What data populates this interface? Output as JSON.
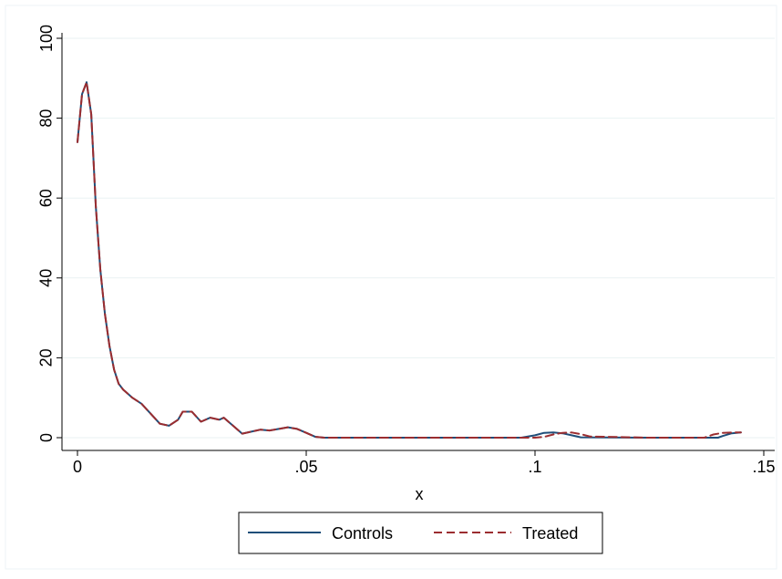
{
  "chart_data": {
    "type": "line",
    "title": "",
    "xlabel": "x",
    "ylabel": "",
    "xlim": [
      0,
      0.15
    ],
    "ylim": [
      0,
      100
    ],
    "xticks": [
      0,
      0.05,
      0.1,
      0.15
    ],
    "xtick_labels": [
      "0",
      ".05",
      ".1",
      ".15"
    ],
    "yticks": [
      0,
      20,
      40,
      60,
      80,
      100
    ],
    "ytick_labels": [
      "0",
      "20",
      "40",
      "60",
      "80",
      "100"
    ],
    "grid": true,
    "legend_position": "bottom",
    "series": [
      {
        "name": "Controls",
        "color": "#1f4e79",
        "dash": "solid",
        "x": [
          0,
          0.001,
          0.002,
          0.003,
          0.004,
          0.005,
          0.006,
          0.007,
          0.008,
          0.009,
          0.01,
          0.011,
          0.012,
          0.014,
          0.016,
          0.018,
          0.02,
          0.022,
          0.023,
          0.025,
          0.027,
          0.029,
          0.031,
          0.032,
          0.034,
          0.036,
          0.038,
          0.04,
          0.042,
          0.044,
          0.046,
          0.048,
          0.05,
          0.052,
          0.054,
          0.056,
          0.058,
          0.06,
          0.062,
          0.08,
          0.097,
          0.1,
          0.102,
          0.104,
          0.106,
          0.108,
          0.11,
          0.125,
          0.139,
          0.14,
          0.141,
          0.143,
          0.145
        ],
        "values": [
          74,
          86,
          89,
          81,
          58,
          42,
          31,
          23,
          17,
          13.5,
          12,
          11,
          10,
          8.5,
          6,
          3.5,
          3,
          4.5,
          6.5,
          6.5,
          4,
          5,
          4.5,
          5,
          3,
          1,
          1.5,
          2,
          1.8,
          2.2,
          2.6,
          2.2,
          1.2,
          0.2,
          0,
          0,
          0,
          0,
          0,
          0,
          0,
          0.6,
          1.2,
          1.3,
          1.1,
          0.6,
          0.1,
          0,
          0,
          0,
          0.4,
          1.1,
          1.3
        ]
      },
      {
        "name": "Treated",
        "color": "#9b2d30",
        "dash": "dashed",
        "x": [
          0,
          0.001,
          0.002,
          0.003,
          0.004,
          0.005,
          0.006,
          0.007,
          0.008,
          0.009,
          0.01,
          0.011,
          0.012,
          0.014,
          0.016,
          0.018,
          0.02,
          0.022,
          0.023,
          0.025,
          0.027,
          0.029,
          0.031,
          0.032,
          0.034,
          0.036,
          0.038,
          0.04,
          0.042,
          0.044,
          0.046,
          0.048,
          0.05,
          0.052,
          0.054,
          0.056,
          0.058,
          0.06,
          0.062,
          0.08,
          0.097,
          0.1,
          0.102,
          0.104,
          0.106,
          0.108,
          0.11,
          0.112,
          0.125,
          0.137,
          0.139,
          0.141,
          0.143,
          0.145
        ],
        "values": [
          74,
          86,
          89,
          81,
          58,
          42,
          31,
          23,
          17,
          13.5,
          12,
          11,
          10,
          8.5,
          6,
          3.5,
          3,
          4.5,
          6.5,
          6.5,
          4,
          5,
          4.5,
          5,
          3,
          1,
          1.5,
          2,
          1.8,
          2.2,
          2.6,
          2.2,
          1.2,
          0.2,
          0,
          0,
          0,
          0,
          0,
          0,
          0,
          0,
          0.2,
          0.8,
          1.2,
          1.3,
          0.9,
          0.3,
          0,
          0,
          0.8,
          1.2,
          1.3,
          1.3
        ]
      }
    ]
  }
}
